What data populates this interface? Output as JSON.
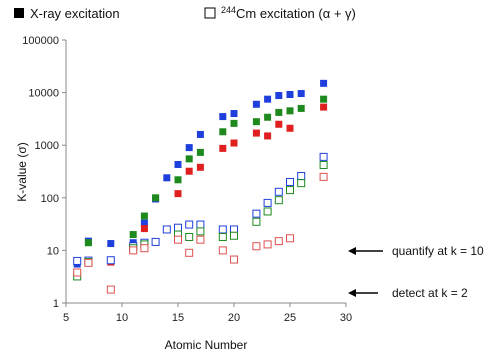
{
  "chart_data": {
    "type": "scatter",
    "xlabel": "Atomic Number",
    "ylabel": "K-value (σ)",
    "xlim": [
      5,
      30
    ],
    "ylim": [
      1,
      100000
    ],
    "yscale": "log",
    "grid": false,
    "legend_position": "top",
    "x_ticks": [
      "5",
      "10",
      "15",
      "20",
      "25",
      "30"
    ],
    "y_ticks": [
      "1",
      "10",
      "100",
      "1000",
      "10000",
      "100000"
    ],
    "legend": [
      {
        "label": "X-ray excitation",
        "marker": "filled-square"
      },
      {
        "label_pre": "",
        "label_sup": "244",
        "label_post": "Cm excitation (α + γ)",
        "marker": "open-square"
      }
    ],
    "series": [
      {
        "group": "X-ray excitation",
        "marker": "filled",
        "color": "#1f3fdc",
        "points": [
          [
            6,
            5.5
          ],
          [
            7,
            15
          ],
          [
            9,
            13.5
          ],
          [
            11,
            14
          ],
          [
            12,
            33
          ],
          [
            13,
            95
          ],
          [
            14,
            240
          ],
          [
            15,
            430
          ],
          [
            16,
            900
          ],
          [
            17,
            1600
          ],
          [
            19,
            3500
          ],
          [
            20,
            4000
          ],
          [
            22,
            6000
          ],
          [
            23,
            7500
          ],
          [
            24,
            8800
          ],
          [
            25,
            9200
          ],
          [
            26,
            9600
          ],
          [
            28,
            15000
          ]
        ]
      },
      {
        "group": "X-ray excitation",
        "marker": "filled",
        "color": "#1e8a1e",
        "points": [
          [
            6,
            3.5
          ],
          [
            7,
            14
          ],
          [
            9,
            6.5
          ],
          [
            11,
            20
          ],
          [
            12,
            45
          ],
          [
            13,
            100
          ],
          [
            15,
            220
          ],
          [
            16,
            550
          ],
          [
            17,
            730
          ],
          [
            19,
            1800
          ],
          [
            20,
            2600
          ],
          [
            22,
            2800
          ],
          [
            23,
            3400
          ],
          [
            24,
            4200
          ],
          [
            25,
            4500
          ],
          [
            26,
            5000
          ],
          [
            28,
            7500
          ]
        ]
      },
      {
        "group": "X-ray excitation",
        "marker": "filled",
        "color": "#e01f1f",
        "points": [
          [
            6,
            3.2
          ],
          [
            7,
            6
          ],
          [
            9,
            6
          ],
          [
            11,
            10
          ],
          [
            12,
            26
          ],
          [
            15,
            120
          ],
          [
            16,
            320
          ],
          [
            17,
            380
          ],
          [
            19,
            870
          ],
          [
            20,
            1100
          ],
          [
            22,
            1700
          ],
          [
            23,
            1500
          ],
          [
            24,
            2500
          ],
          [
            25,
            2100
          ],
          [
            28,
            5300
          ]
        ]
      },
      {
        "group": "244Cm excitation (α + γ)",
        "marker": "open",
        "color": "#1f3fdc",
        "points": [
          [
            6,
            6.3
          ],
          [
            7,
            6.4
          ],
          [
            9,
            6.5
          ],
          [
            11,
            12
          ],
          [
            12,
            14
          ],
          [
            13,
            14.5
          ],
          [
            14,
            25
          ],
          [
            15,
            27
          ],
          [
            16,
            31
          ],
          [
            17,
            31
          ],
          [
            19,
            25
          ],
          [
            20,
            25
          ],
          [
            22,
            50
          ],
          [
            23,
            80
          ],
          [
            24,
            130
          ],
          [
            25,
            200
          ],
          [
            26,
            260
          ],
          [
            28,
            600
          ]
        ]
      },
      {
        "group": "244Cm excitation (α + γ)",
        "marker": "open",
        "color": "#1e8a1e",
        "points": [
          [
            6,
            3.2
          ],
          [
            7,
            6
          ],
          [
            11,
            11
          ],
          [
            12,
            13
          ],
          [
            15,
            20
          ],
          [
            16,
            18
          ],
          [
            17,
            23
          ],
          [
            19,
            18
          ],
          [
            20,
            19
          ],
          [
            22,
            35
          ],
          [
            23,
            55
          ],
          [
            24,
            90
          ],
          [
            25,
            140
          ],
          [
            26,
            190
          ],
          [
            28,
            420
          ]
        ]
      },
      {
        "group": "244Cm excitation (α + γ)",
        "marker": "open",
        "color": "#e05050",
        "points": [
          [
            6,
            3.8
          ],
          [
            7,
            5.8
          ],
          [
            9,
            1.8
          ],
          [
            11,
            10
          ],
          [
            12,
            11
          ],
          [
            15,
            16
          ],
          [
            16,
            9
          ],
          [
            17,
            16
          ],
          [
            19,
            10
          ],
          [
            20,
            6.7
          ],
          [
            22,
            12
          ],
          [
            23,
            13
          ],
          [
            24,
            15
          ],
          [
            25,
            17
          ],
          [
            28,
            250
          ]
        ]
      }
    ],
    "annotations": [
      {
        "text": "quantify at k = 10",
        "y": 10
      },
      {
        "text": "detect at k = 2",
        "y": 2
      }
    ]
  }
}
